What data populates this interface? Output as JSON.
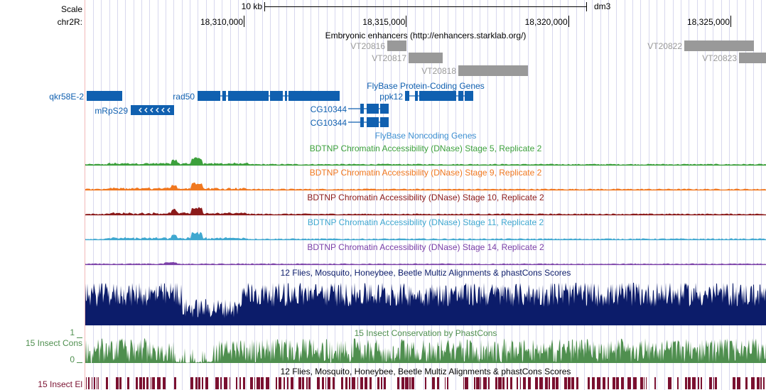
{
  "scale": {
    "label": "Scale",
    "bar_label": "10 kb",
    "assembly": "dm3"
  },
  "ruler": {
    "chrom_label": "chr2R:",
    "ticks": [
      {
        "pos": 18310000,
        "label": "18,310,000"
      },
      {
        "pos": 18315000,
        "label": "18,315,000"
      },
      {
        "pos": 18320000,
        "label": "18,320,000"
      },
      {
        "pos": 18325000,
        "label": "18,325,000"
      }
    ]
  },
  "tracks": {
    "enhancers": {
      "title": "Embryonic enhancers (http://enhancers.starklab.org/)",
      "color": "#999999",
      "items": [
        {
          "name": "VT20816"
        },
        {
          "name": "VT20817"
        },
        {
          "name": "VT20818"
        },
        {
          "name": "VT20822"
        },
        {
          "name": "VT20823"
        }
      ]
    },
    "genes": {
      "title": "FlyBase Protein-Coding Genes",
      "color": "#1060b0",
      "items": [
        {
          "name": "qkr58E-2"
        },
        {
          "name": "mRpS29",
          "strand": "-"
        },
        {
          "name": "rad50"
        },
        {
          "name": "ppk12"
        },
        {
          "name": "CG10344"
        },
        {
          "name": "CG10344"
        }
      ]
    },
    "noncoding": {
      "title": "FlyBase Noncoding Genes",
      "color": "#3d8fd1"
    },
    "dnase": [
      {
        "title": "BDTNP Chromatin Accessibility (DNase) Stage 5, Replicate 2",
        "color": "#3ca03c"
      },
      {
        "title": "BDTNP Chromatin Accessibility (DNase) Stage 9, Replicate 2",
        "color": "#f07820"
      },
      {
        "title": "BDTNP Chromatin Accessibility (DNase) Stage 10, Replicate 2",
        "color": "#8b1a1a"
      },
      {
        "title": "BDTNP Chromatin Accessibility (DNase) Stage 11, Replicate 2",
        "color": "#40a8d0"
      },
      {
        "title": "BDTNP Chromatin Accessibility (DNase) Stage 14, Replicate 2",
        "color": "#7b40a8"
      }
    ],
    "multiz": {
      "title": "12 Flies, Mosquito, Honeybee, Beetle Multiz Alignments & phastCons Scores",
      "color": "#0c1c6a"
    },
    "phastcons": {
      "title": "15 Insect Conservation by PhastCons",
      "side_label": "15 Insect Cons",
      "ymax_label": "1",
      "ymin_label": "0",
      "color": "#4f8f4f"
    },
    "elements": {
      "title": "12 Flies, Mosquito, Honeybee, Beetle Multiz Alignments & phastCons Scores",
      "side_label": "15 Insect El",
      "color": "#7a1030"
    }
  }
}
